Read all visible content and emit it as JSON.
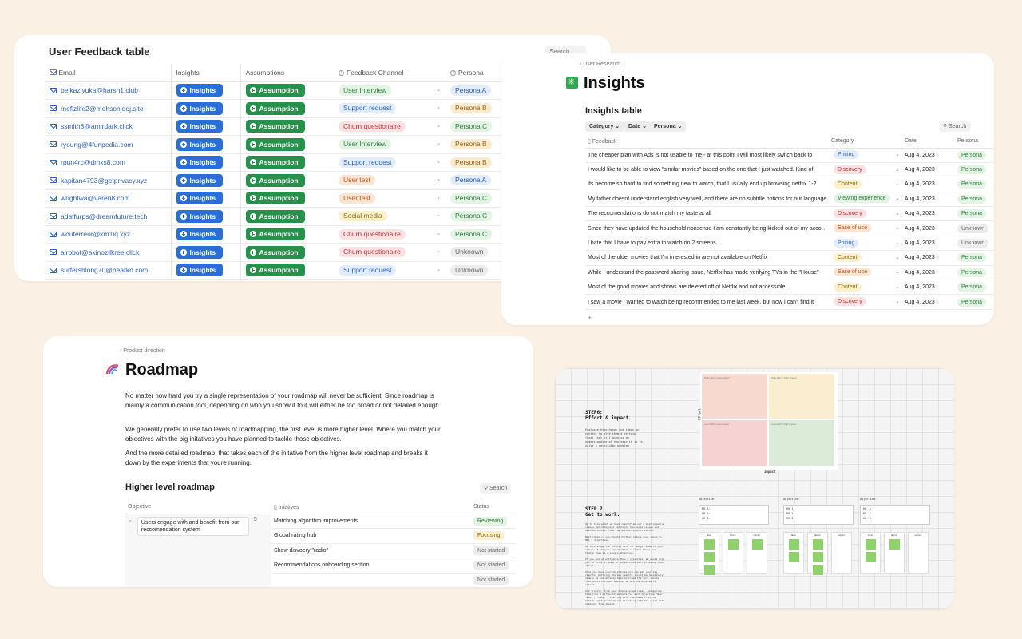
{
  "feedback": {
    "title": "User Feedback table",
    "search": "Search",
    "columns": {
      "email": "Email",
      "insights": "Insights",
      "assumptions": "Assumptions",
      "channel": "Feedback Channel",
      "persona": "Persona"
    },
    "insights_label": "Insights",
    "assumption_label": "Assumption",
    "rows": [
      {
        "email": "belkazlyuka@harsh1.club",
        "channel": "User Interview",
        "persona": "Persona A"
      },
      {
        "email": "mefizlife2@mohsonjooj.site",
        "channel": "Support request",
        "persona": "Persona B"
      },
      {
        "email": "ssmith8@amirdark.click",
        "channel": "Churn questionaire",
        "persona": "Persona C"
      },
      {
        "email": "ryoung@4funpedia.com",
        "channel": "User Interview",
        "persona": "Persona B"
      },
      {
        "email": "rpun4rc@dmxs8.com",
        "channel": "Support request",
        "persona": "Persona B"
      },
      {
        "email": "kapitan4793@getprivacy.xyz",
        "channel": "User test",
        "persona": "Persona A"
      },
      {
        "email": "wrightwa@varen8.com",
        "channel": "User test",
        "persona": "Persona C"
      },
      {
        "email": "adatfurps@dreamfuture.tech",
        "channel": "Social media",
        "persona": "Persona C"
      },
      {
        "email": "wouterreur@km1iq.xyz",
        "channel": "Churn questionaire",
        "persona": "Persona C"
      },
      {
        "email": "alrobot@akinozilkree.click",
        "channel": "Churn questionaire",
        "persona": "Unknown"
      },
      {
        "email": "surfershlong70@hearkn.com",
        "channel": "Support request",
        "persona": "Unknown"
      }
    ]
  },
  "insights": {
    "breadcrumb": "User Research",
    "title": "Insights",
    "table_title": "Insights table",
    "filters": [
      "Category",
      "Date",
      "Persona"
    ],
    "search": "Search",
    "columns": {
      "feedback": "Feedback",
      "category": "Category",
      "date": "Date",
      "persona": "Persona"
    },
    "rows": [
      {
        "feedback": "The cheaper plan with Ads is not usable to me - at this point I will most likely switch back to",
        "category": "Pricing",
        "date": "Aug 4, 2023",
        "persona": "Persona"
      },
      {
        "feedback": "I would like to be able to view \"similar movies\" based on the one that I just watched. Kind of",
        "category": "Discovery",
        "date": "Aug 4, 2023",
        "persona": "Persona"
      },
      {
        "feedback": "Its become so hard to find something new to watch, that I usually end up browsing netflix 1-2",
        "category": "Content",
        "date": "Aug 4, 2023",
        "persona": "Persona"
      },
      {
        "feedback": "My father doesnt understand english very well, and there are no subtitle options for our language",
        "category": "Viewing experience",
        "date": "Aug 4, 2023",
        "persona": "Persona"
      },
      {
        "feedback": "The reccomendations do not match my taste at all",
        "category": "Discovery",
        "date": "Aug 4, 2023",
        "persona": "Persona"
      },
      {
        "feedback": "Since they have updated the household nonsense I am constantly being kicked out of my account",
        "category": "Ease of use",
        "date": "Aug 4, 2023",
        "persona": "Unknown"
      },
      {
        "feedback": "I hate that I have to pay extra to watch on 2 screens.",
        "category": "Pricing",
        "date": "Aug 4, 2023",
        "persona": "Unknown"
      },
      {
        "feedback": "Most of the older movies that I'm interested in are not available on Netflix",
        "category": "Content",
        "date": "Aug 4, 2023",
        "persona": "Persona"
      },
      {
        "feedback": "While I understand the password sharing issue, Netflix has made verifying TVs in the \"House\"",
        "category": "Ease of use",
        "date": "Aug 4, 2023",
        "persona": "Persona"
      },
      {
        "feedback": "Most of the good movies and shows are deleted off of Netflix and not accessible.",
        "category": "Content",
        "date": "Aug 4, 2023",
        "persona": "Persona"
      },
      {
        "feedback": "I saw a movie I wanted to watch being recommended to me last week, but now I can't find it",
        "category": "Discovery",
        "date": "Aug 4, 2023",
        "persona": "Persona"
      }
    ],
    "add": "+"
  },
  "roadmap": {
    "breadcrumb": "Product direction",
    "title": "Roadmap",
    "paragraphs": [
      "No matter how hard you try a single representation of your roadmap will never be sufficient. Since roadmap is mainly a communication tool, depending on who you show it to it will either be too broad or not detailed enough.",
      "We generally prefer to use two levels of roadmapping, the first level is more higher level. Where you match your objectives with the big initatives you have planned to tackle those objectives.",
      "And the more detailed roadmap, that takes each of the initative from the higher level roadmap and breaks it down by the experiments that youre running."
    ],
    "section_title": "Higher level roadmap",
    "search": "Search",
    "columns": {
      "objective": "Objective",
      "initiatives": "Iniatives",
      "status": "Status"
    },
    "objective": "Users engage with and benefit from our reccomendation system",
    "objective_count": "5",
    "rows": [
      {
        "initiative": "Matching algorithm improvements",
        "status": "Reviewing"
      },
      {
        "initiative": "Global rating hub",
        "status": "Focusing"
      },
      {
        "initiative": "Show disvoery \"radio\"",
        "status": "Not started"
      },
      {
        "initiative": "Recommendations onboarding section",
        "status": "Not started"
      },
      {
        "initiative": "",
        "status": "Not started"
      }
    ]
  },
  "board": {
    "step6_title": "STEP6:\nEffort & impact",
    "step6_text": "Evaluate hypotheses and ideas in context to give them a certain level that will give us an understanding of how easy it is to solve a particular problem",
    "axis_effort": "Effort",
    "axis_impact": "Impact",
    "quadrants": [
      "High effort / Low impact",
      "High effort / high impact",
      "Low effort / Low impact",
      "Low effort / high impact"
    ],
    "step7_title": "STEP 7:\nGet to work.",
    "step7_text": "Up to this point we have identified our 4 most pressing issues. Unintroduced solutions how could issues and desired context them the easiest prioritization.\n\nNext ideally, you should further reduce your issue to MAX 3 objectives.\n\nAt this stage its totally fine to \"merge\" some of your issues if they're representing a common theme and tackle them as a single objective.\n\nIf you end up with more than 3 objective. We would urge you to think if some of those could wait pressing than others.\n\nOnce you have your objectives you can set your key results. Defining the key results should be relatively simple as you already have outlined the core issues that would indicate whether we are the problem is solved.\n\nAnd finally, from your brainstormed ideas, categorize them into 3 different buckets for each objective \"Now\", \"Next\", \"Later\". Starting with the ideas from the bottom right quadrant and finishing with the upper left quadrant from step 6.",
    "objective_label": "Objective:",
    "kr_lines": [
      "KR 1:",
      "KR 2:",
      "KR 3:"
    ],
    "lanes": [
      "Now",
      "Next",
      "Later"
    ]
  },
  "colors": {
    "background": "#faf1e4",
    "insights_button": "#2a6fd8",
    "assumption_button": "#27904a",
    "link": "#2c5fbf"
  }
}
